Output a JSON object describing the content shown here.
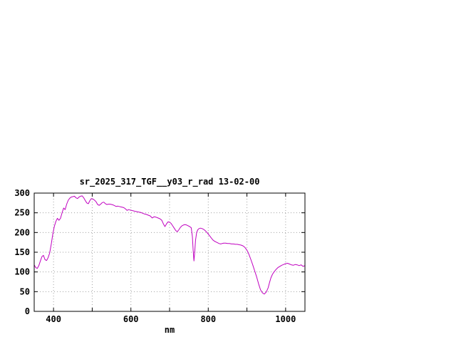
{
  "window": {
    "background_color": "#ffffff"
  },
  "chart": {
    "title": "sr_2025_317_TGF__y03_r_rad 13-02-00",
    "x_axis_label": "nm",
    "x_tick_labels": [
      "400",
      "600",
      "800",
      "1000"
    ],
    "y_tick_labels": [
      "0",
      "50",
      "100",
      "150",
      "200",
      "250",
      "300"
    ]
  },
  "chart_data": {
    "type": "line",
    "title": "sr_2025_317_TGF__y03_r_rad 13-02-00",
    "xlabel": "nm",
    "ylabel": "",
    "xlim": [
      350,
      1050
    ],
    "ylim": [
      0,
      300
    ],
    "grid": true,
    "legend": "none",
    "line_color": "#c000c0",
    "grid_color": "#a0a0a0",
    "x_ticks_labeled": [
      400,
      600,
      800,
      1000
    ],
    "x_ticks_all": [
      400,
      500,
      600,
      700,
      800,
      900,
      1000
    ],
    "y_ticks": [
      0,
      50,
      100,
      150,
      200,
      250,
      300
    ],
    "series": [
      {
        "name": "sr_2025_317_TGF__y03_r_rad",
        "points": [
          [
            350,
            118
          ],
          [
            354,
            111
          ],
          [
            358,
            109
          ],
          [
            362,
            116
          ],
          [
            366,
            128
          ],
          [
            370,
            139
          ],
          [
            374,
            142
          ],
          [
            378,
            131
          ],
          [
            382,
            129
          ],
          [
            386,
            136
          ],
          [
            390,
            148
          ],
          [
            394,
            170
          ],
          [
            398,
            196
          ],
          [
            402,
            215
          ],
          [
            406,
            228
          ],
          [
            410,
            236
          ],
          [
            414,
            231
          ],
          [
            418,
            236
          ],
          [
            422,
            250
          ],
          [
            426,
            262
          ],
          [
            430,
            258
          ],
          [
            434,
            272
          ],
          [
            438,
            282
          ],
          [
            442,
            287
          ],
          [
            446,
            290
          ],
          [
            450,
            291
          ],
          [
            454,
            292
          ],
          [
            458,
            288
          ],
          [
            462,
            286
          ],
          [
            466,
            290
          ],
          [
            470,
            292
          ],
          [
            474,
            293
          ],
          [
            478,
            288
          ],
          [
            482,
            281
          ],
          [
            486,
            275
          ],
          [
            490,
            273
          ],
          [
            494,
            281
          ],
          [
            498,
            286
          ],
          [
            502,
            285
          ],
          [
            506,
            282
          ],
          [
            510,
            278
          ],
          [
            514,
            271
          ],
          [
            518,
            269
          ],
          [
            522,
            272
          ],
          [
            526,
            276
          ],
          [
            530,
            277
          ],
          [
            534,
            273
          ],
          [
            538,
            271
          ],
          [
            542,
            272
          ],
          [
            546,
            272
          ],
          [
            550,
            271
          ],
          [
            554,
            270
          ],
          [
            558,
            268
          ],
          [
            562,
            266
          ],
          [
            566,
            267
          ],
          [
            570,
            266
          ],
          [
            574,
            265
          ],
          [
            578,
            264
          ],
          [
            582,
            263
          ],
          [
            586,
            260
          ],
          [
            590,
            256
          ],
          [
            594,
            258
          ],
          [
            598,
            257
          ],
          [
            602,
            256
          ],
          [
            606,
            255
          ],
          [
            610,
            254
          ],
          [
            615,
            253
          ],
          [
            620,
            252
          ],
          [
            625,
            251
          ],
          [
            630,
            249
          ],
          [
            635,
            247
          ],
          [
            640,
            246
          ],
          [
            645,
            244
          ],
          [
            650,
            242
          ],
          [
            655,
            237
          ],
          [
            660,
            240
          ],
          [
            665,
            239
          ],
          [
            670,
            237
          ],
          [
            675,
            235
          ],
          [
            680,
            231
          ],
          [
            684,
            222
          ],
          [
            688,
            215
          ],
          [
            692,
            222
          ],
          [
            696,
            227
          ],
          [
            700,
            226
          ],
          [
            704,
            223
          ],
          [
            708,
            217
          ],
          [
            712,
            211
          ],
          [
            716,
            205
          ],
          [
            720,
            202
          ],
          [
            724,
            207
          ],
          [
            728,
            213
          ],
          [
            732,
            217
          ],
          [
            736,
            219
          ],
          [
            740,
            220
          ],
          [
            744,
            219
          ],
          [
            748,
            217
          ],
          [
            752,
            215
          ],
          [
            756,
            212
          ],
          [
            759,
            190
          ],
          [
            761,
            155
          ],
          [
            763,
            128
          ],
          [
            765,
            150
          ],
          [
            767,
            180
          ],
          [
            770,
            200
          ],
          [
            773,
            207
          ],
          [
            776,
            210
          ],
          [
            780,
            211
          ],
          [
            784,
            210
          ],
          [
            788,
            208
          ],
          [
            792,
            205
          ],
          [
            796,
            201
          ],
          [
            800,
            196
          ],
          [
            804,
            191
          ],
          [
            808,
            186
          ],
          [
            812,
            181
          ],
          [
            816,
            178
          ],
          [
            820,
            176
          ],
          [
            824,
            174
          ],
          [
            828,
            172
          ],
          [
            832,
            171
          ],
          [
            836,
            172
          ],
          [
            840,
            173
          ],
          [
            845,
            173
          ],
          [
            850,
            172
          ],
          [
            855,
            172
          ],
          [
            860,
            171
          ],
          [
            865,
            171
          ],
          [
            870,
            170
          ],
          [
            875,
            170
          ],
          [
            880,
            169
          ],
          [
            885,
            168
          ],
          [
            890,
            166
          ],
          [
            895,
            162
          ],
          [
            900,
            155
          ],
          [
            905,
            145
          ],
          [
            910,
            132
          ],
          [
            915,
            118
          ],
          [
            920,
            103
          ],
          [
            925,
            88
          ],
          [
            930,
            70
          ],
          [
            935,
            55
          ],
          [
            940,
            47
          ],
          [
            945,
            44
          ],
          [
            950,
            49
          ],
          [
            955,
            60
          ],
          [
            958,
            72
          ],
          [
            962,
            85
          ],
          [
            966,
            94
          ],
          [
            970,
            100
          ],
          [
            975,
            106
          ],
          [
            980,
            111
          ],
          [
            985,
            114
          ],
          [
            990,
            117
          ],
          [
            995,
            119
          ],
          [
            1000,
            121
          ],
          [
            1005,
            122
          ],
          [
            1010,
            120
          ],
          [
            1015,
            118
          ],
          [
            1020,
            117
          ],
          [
            1025,
            119
          ],
          [
            1030,
            118
          ],
          [
            1035,
            116
          ],
          [
            1040,
            118
          ],
          [
            1045,
            114
          ],
          [
            1050,
            116
          ]
        ]
      }
    ]
  }
}
